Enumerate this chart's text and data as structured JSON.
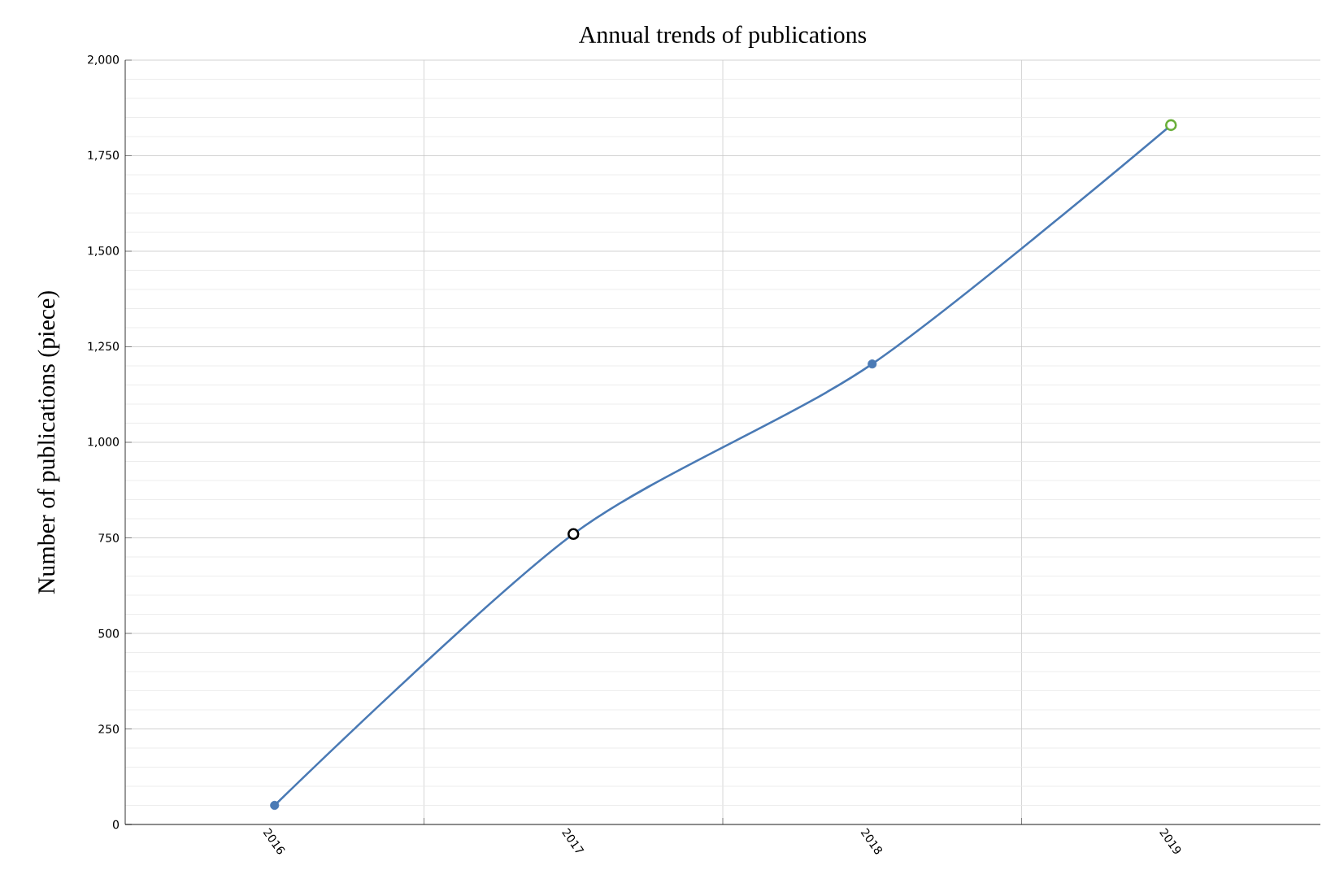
{
  "chart_data": {
    "type": "line",
    "title": "Annual trends of publications",
    "ylabel": "Number of publications (piece)",
    "categories": [
      "2016",
      "2017",
      "2018",
      "2019"
    ],
    "series": [
      {
        "color": "#4a7ab5",
        "values": [
          50,
          760,
          1205,
          1830
        ],
        "colors": [
          "#4a7ab5",
          "#000000",
          "#4a7ab5",
          "#6aaf3a"
        ]
      }
    ],
    "ylim": [
      0,
      2000
    ],
    "yticks": [
      {
        "value": 0,
        "label": "0"
      },
      {
        "value": 250,
        "label": "250"
      },
      {
        "value": 500,
        "label": "500"
      },
      {
        "value": 750,
        "label": "750"
      },
      {
        "value": 1000,
        "label": "1,000"
      },
      {
        "value": 1250,
        "label": "1,250"
      },
      {
        "value": 1500,
        "label": "1,500"
      },
      {
        "value": 1750,
        "label": "1,750"
      },
      {
        "value": 2000,
        "label": "2,000"
      }
    ],
    "grid": true,
    "marker": "circle",
    "line_style": "solid"
  }
}
